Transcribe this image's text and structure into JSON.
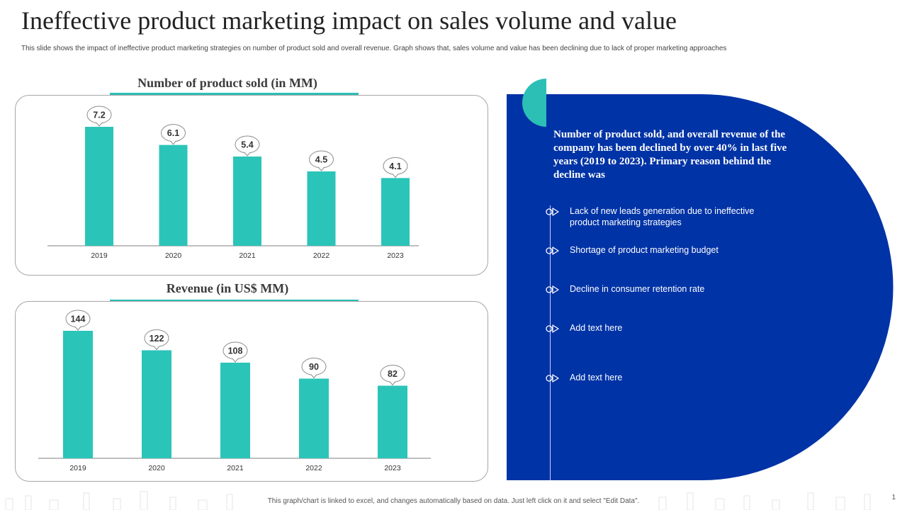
{
  "header": {
    "title": "Ineffective product marketing impact on sales volume and value",
    "subtitle": "This slide shows the impact of ineffective product marketing strategies on number of product sold and overall revenue. Graph shows that, sales volume and value has been declining due to lack of proper marketing approaches"
  },
  "chart_data": [
    {
      "type": "bar",
      "title": "Number of product sold (in MM)",
      "categories": [
        "2019",
        "2020",
        "2021",
        "2022",
        "2023"
      ],
      "values": [
        7.2,
        6.1,
        5.4,
        4.5,
        4.1
      ],
      "xlabel": "",
      "ylabel": "",
      "ylim": [
        0,
        7.2
      ],
      "color": "#2bc4b9"
    },
    {
      "type": "bar",
      "title": "Revenue (in US$ MM)",
      "categories": [
        "2019",
        "2020",
        "2021",
        "2022",
        "2023"
      ],
      "values": [
        144,
        122,
        108,
        90,
        82
      ],
      "xlabel": "",
      "ylabel": "",
      "ylim": [
        0,
        144
      ],
      "color": "#2bc4b9"
    }
  ],
  "panel": {
    "heading": "Number of product sold, and overall revenue of the company has been declined by over 40% in last five years (2019 to 2023). Primary reason behind the decline was",
    "points": [
      "Lack of new leads generation due to ineffective product marketing strategies",
      "Shortage of product marketing budget",
      "Decline in consumer retention rate",
      "Add text here",
      "Add text here"
    ],
    "bullet_icon": "play-triangle-icon",
    "colors": {
      "panel": "#0033a6",
      "accent": "#2bbfb6",
      "text": "#ffffff"
    }
  },
  "footer": {
    "note": "This graph/chart is linked to excel, and changes automatically based on data. Just left click on it and select \"Edit Data\".",
    "page_number": "1"
  }
}
